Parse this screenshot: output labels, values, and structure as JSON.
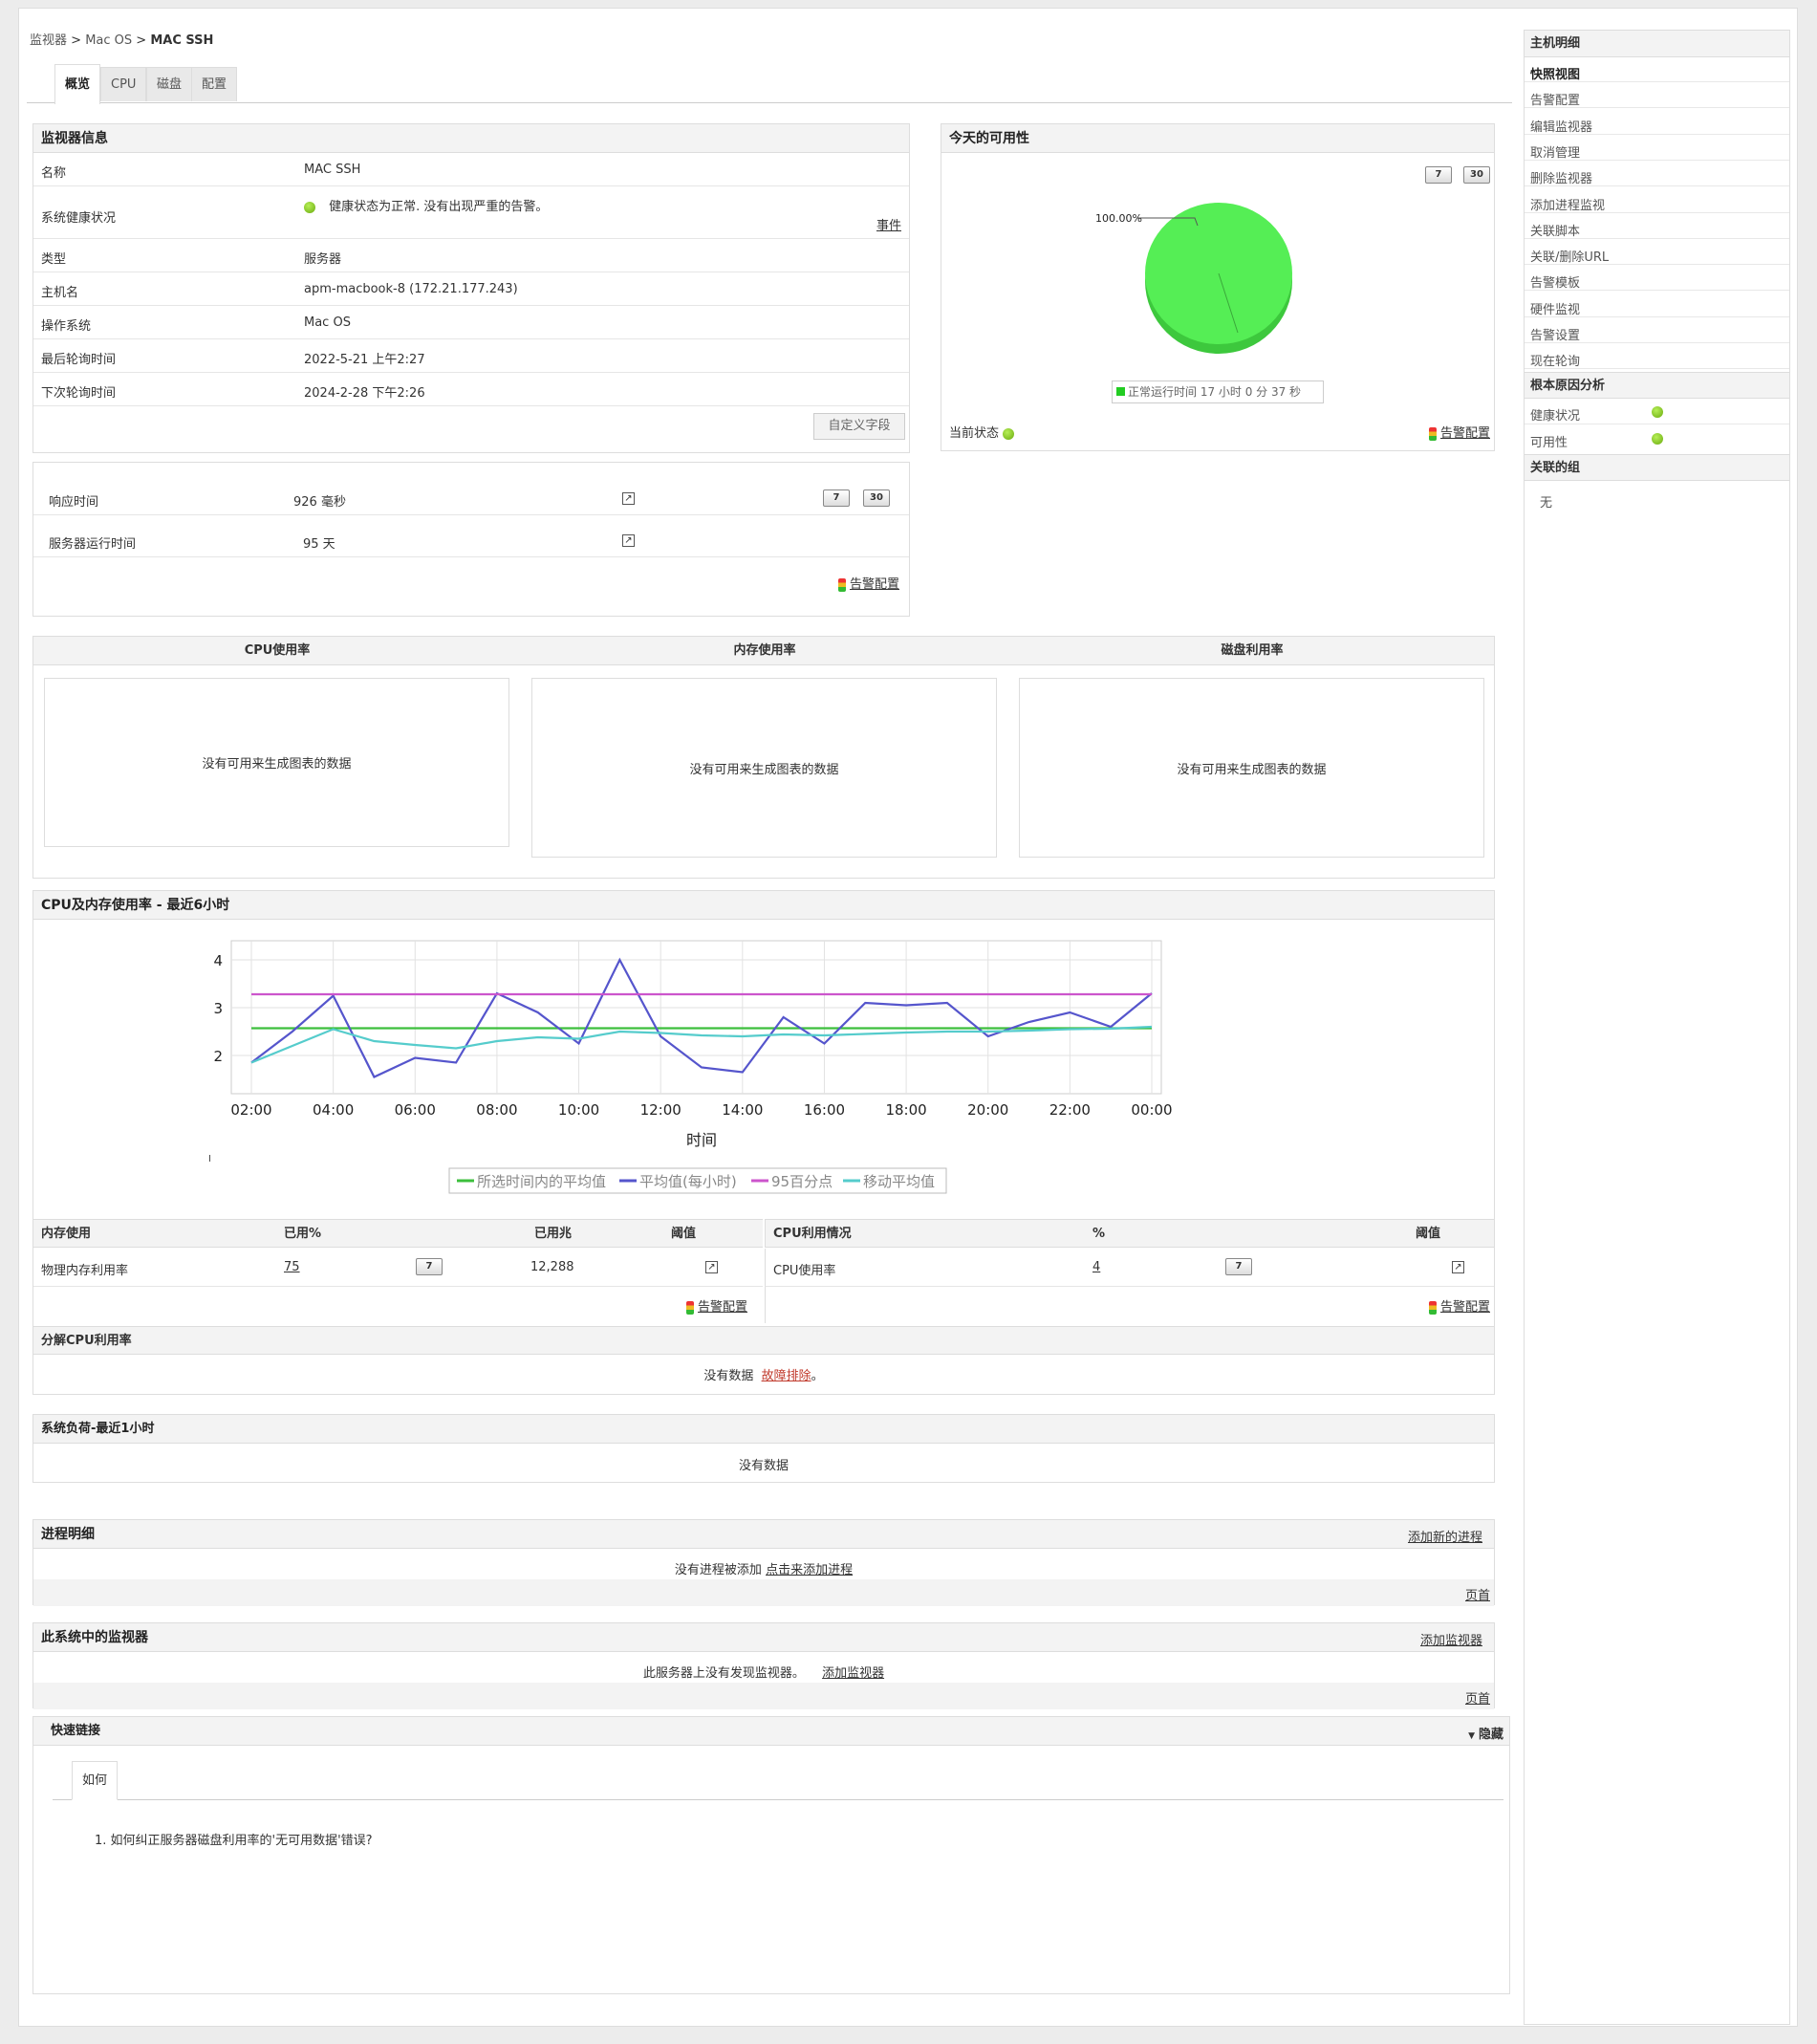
{
  "breadcrumb": {
    "part1": "监视器",
    "sep": ">",
    "part2": "Mac OS",
    "current": "MAC SSH"
  },
  "tabs": [
    {
      "label": "概览"
    },
    {
      "label": "CPU"
    },
    {
      "label": "磁盘"
    },
    {
      "label": "配置"
    }
  ],
  "monitor_info": {
    "title": "监视器信息",
    "rows": [
      {
        "key": "名称",
        "value": "MAC SSH"
      },
      {
        "key": "系统健康状况",
        "value": "健康状态为正常. 没有出现严重的告警。"
      },
      {
        "key": "类型",
        "value": "服务器"
      },
      {
        "key": "主机名",
        "value": "apm-macbook-8 (172.21.177.243)"
      },
      {
        "key": "操作系统",
        "value": "Mac OS"
      },
      {
        "key": "最后轮询时间",
        "value": "2022-5-21 上午2:27"
      },
      {
        "key": "下次轮询时间",
        "value": "2024-2-28 下午2:26"
      }
    ],
    "events_link": "事件",
    "custom_fields_button": "自定义字段"
  },
  "response": {
    "rows": [
      {
        "key": "响应时间",
        "value": "926 毫秒"
      },
      {
        "key": "服务器运行时间",
        "value": "95 天"
      }
    ],
    "btn7": "7",
    "btn30": "30",
    "alert_config": "告警配置"
  },
  "availability": {
    "title": "今天的可用性",
    "btn7": "7",
    "btn30": "30",
    "pie_label": "100.00%",
    "legend": "正常运行时间 17 小时 0 分 37 秒",
    "current_status_label": "当前状态",
    "alert_config": "告警配置",
    "pie_color": "#55ee55"
  },
  "usage": {
    "cols": [
      {
        "title": "CPU使用率",
        "message": "没有可用来生成图表的数据"
      },
      {
        "title": "内存使用率",
        "message": "没有可用来生成图表的数据"
      },
      {
        "title": "磁盘利用率",
        "message": "没有可用来生成图表的数据"
      }
    ]
  },
  "cpu_mem": {
    "title": "CPU及内存使用率 - 最近6小时",
    "mark": "I"
  },
  "chart_data": {
    "type": "line",
    "xlabel": "时间",
    "ylabel": "",
    "x_ticks": [
      "02:00",
      "04:00",
      "06:00",
      "08:00",
      "10:00",
      "12:00",
      "14:00",
      "16:00",
      "18:00",
      "20:00",
      "22:00",
      "00:00"
    ],
    "y_ticks": [
      2,
      3,
      4
    ],
    "ylim": [
      1.2,
      4.4
    ],
    "xlim": [
      0,
      22
    ],
    "grid": true,
    "legend_position": "bottom",
    "series": [
      {
        "name": "所选时间内的平均值",
        "color": "#3cbf3c",
        "x": [
          0,
          22
        ],
        "y": [
          2.57,
          2.57
        ]
      },
      {
        "name": "平均值(每小时)",
        "color": "#5555cc",
        "x": [
          0,
          1,
          2,
          3,
          4,
          5,
          6,
          7,
          8,
          9,
          10,
          11,
          12,
          13,
          14,
          15,
          16,
          17,
          18,
          19,
          20,
          21,
          22
        ],
        "y": [
          1.85,
          2.5,
          3.25,
          1.55,
          1.95,
          1.85,
          3.3,
          2.9,
          2.25,
          4.0,
          2.4,
          1.75,
          1.65,
          2.8,
          2.25,
          3.1,
          3.05,
          3.1,
          2.4,
          2.7,
          2.9,
          2.6,
          3.3
        ]
      },
      {
        "name": "95百分点",
        "color": "#cc55cc",
        "x": [
          0,
          22
        ],
        "y": [
          3.28,
          3.28
        ]
      },
      {
        "name": "移动平均值",
        "color": "#55cccc",
        "x": [
          0,
          1,
          2,
          3,
          4,
          5,
          6,
          7,
          8,
          9,
          10,
          11,
          12,
          13,
          14,
          15,
          16,
          17,
          18,
          19,
          20,
          21,
          22
        ],
        "y": [
          1.85,
          2.2,
          2.55,
          2.3,
          2.22,
          2.15,
          2.3,
          2.38,
          2.35,
          2.5,
          2.47,
          2.42,
          2.4,
          2.44,
          2.42,
          2.45,
          2.48,
          2.5,
          2.5,
          2.52,
          2.55,
          2.56,
          2.6
        ]
      }
    ]
  },
  "memory_table": {
    "headers": [
      "内存使用",
      "已用%",
      "已用兆",
      "阈值"
    ],
    "row": {
      "label": "物理内存利用率",
      "percent": "75",
      "btn7": "7",
      "mb": "12,288"
    },
    "alert_config": "告警配置"
  },
  "cpu_table": {
    "headers": [
      "CPU利用情况",
      "%",
      "阈值"
    ],
    "row": {
      "label": "CPU使用率",
      "percent": "4",
      "btn7": "7"
    },
    "alert_config": "告警配置"
  },
  "cpu_breakdown": {
    "title": "分解CPU利用率",
    "message": "没有数据",
    "link": "故障排除",
    "suffix": "。"
  },
  "system_load": {
    "title": "系统负荷-最近1小时",
    "message": "没有数据"
  },
  "process": {
    "title": "进程明细",
    "add_link": "添加新的进程",
    "message": "没有进程被添加",
    "click_link": "点击来添加进程",
    "top": "页首"
  },
  "monitors": {
    "title": "此系统中的监视器",
    "add_link": "添加监视器",
    "message": "此服务器上没有发现监视器。",
    "add_link2": "添加监视器",
    "top": "页首"
  },
  "quick_links": {
    "title": "快速链接",
    "hide": "隐藏",
    "tab": "如何",
    "item": "1. 如何纠正服务器磁盘利用率的'无可用数据'错误?"
  },
  "sidebar": {
    "host_title": "主机明细",
    "host_items": [
      "快照视图",
      "告警配置",
      "编辑监视器",
      "取消管理",
      "删除监视器",
      "添加进程监视",
      "关联脚本",
      "关联/删除URL",
      "告警模板",
      "硬件监视",
      "告警设置",
      "现在轮询"
    ],
    "rca_title": "根本原因分析",
    "rca_items": [
      "健康状况",
      "可用性"
    ],
    "group_title": "关联的组",
    "group_value": "无"
  }
}
